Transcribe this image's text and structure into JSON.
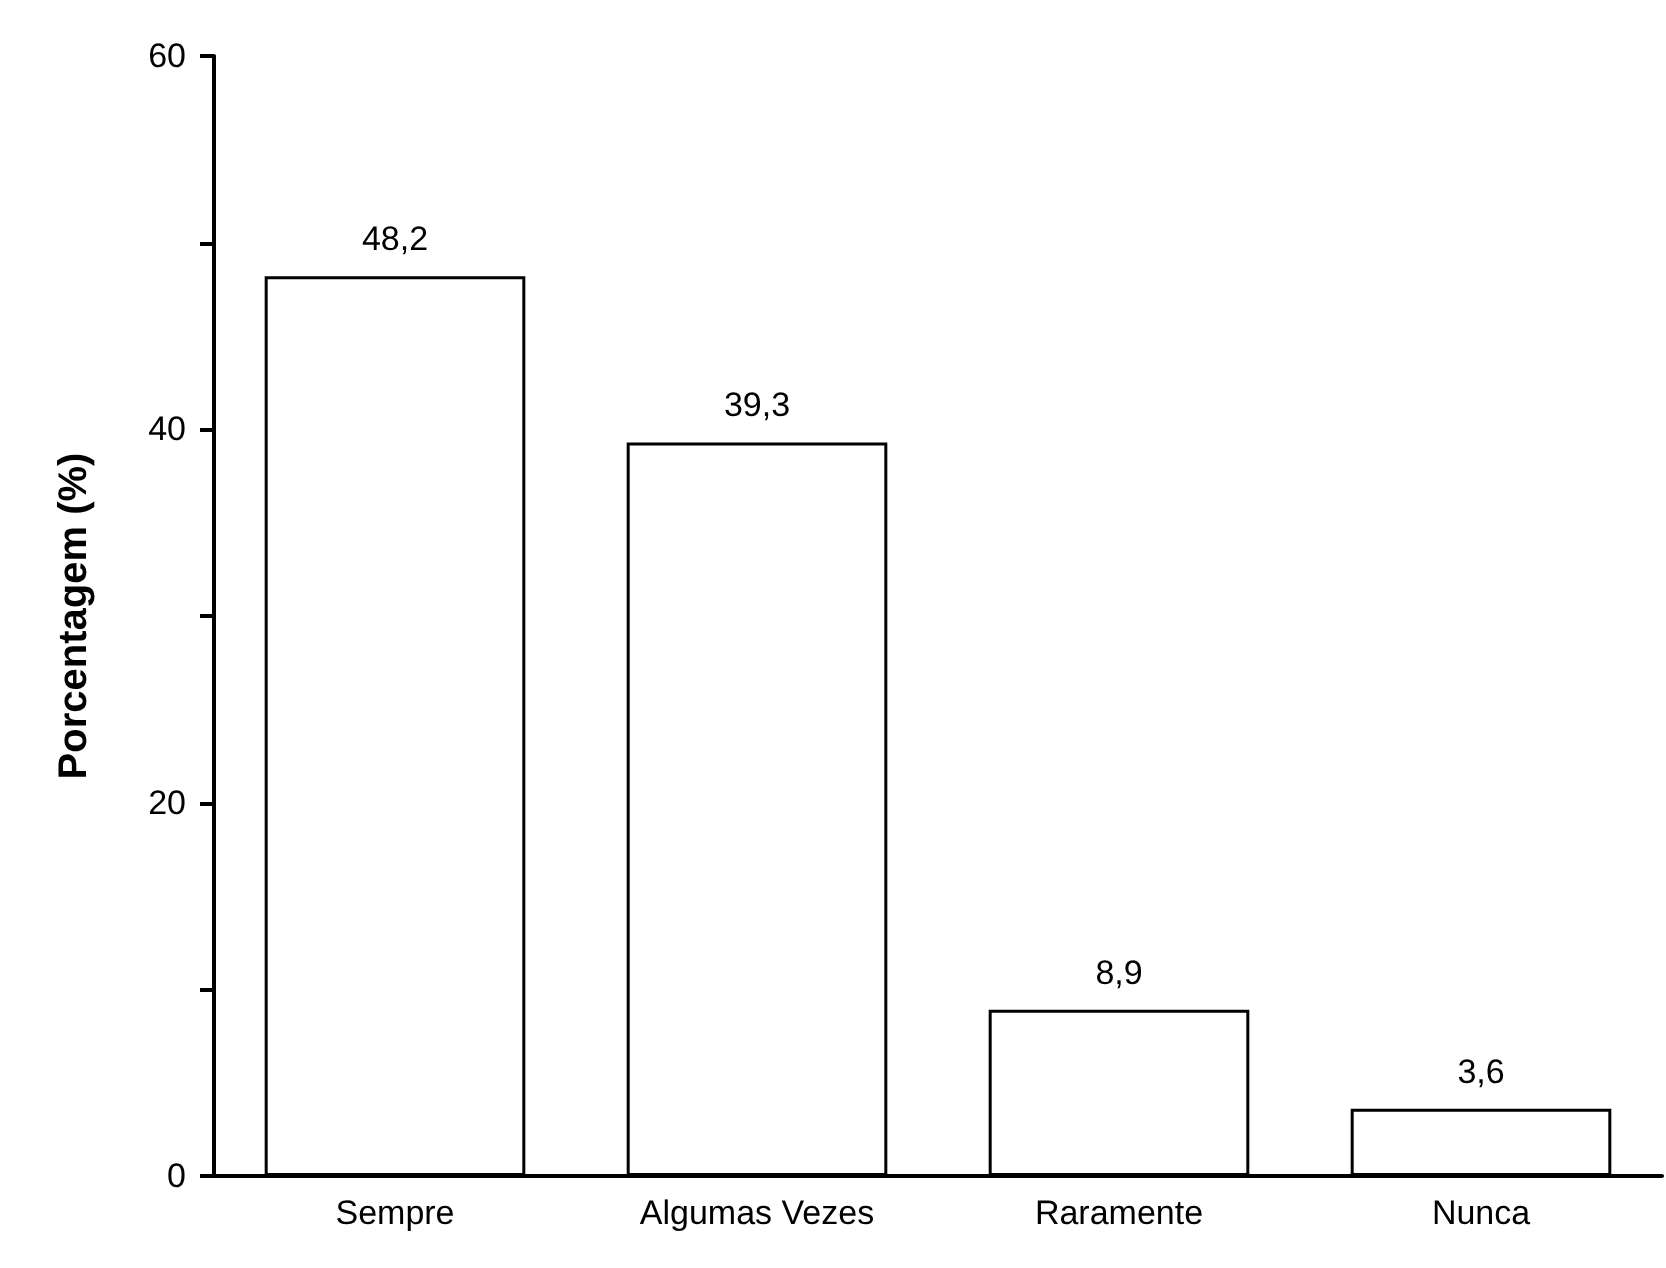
{
  "chart_data": {
    "type": "bar",
    "ylabel": "Porcentagem (%)",
    "categories": [
      "Sempre",
      "Algumas Vezes",
      "Raramente",
      "Nunca"
    ],
    "values": [
      48.2,
      39.3,
      8.9,
      3.6
    ],
    "value_labels": [
      "48,2",
      "39,3",
      "8,9",
      "3,6"
    ],
    "color": "#ffffff",
    "ylim": [
      0,
      60
    ],
    "yticks": [
      0,
      {
        "value": 10,
        "label": null
      },
      20,
      {
        "value": 30,
        "label": null
      },
      40,
      {
        "value": 50,
        "label": null
      },
      60
    ],
    "grid": false
  }
}
